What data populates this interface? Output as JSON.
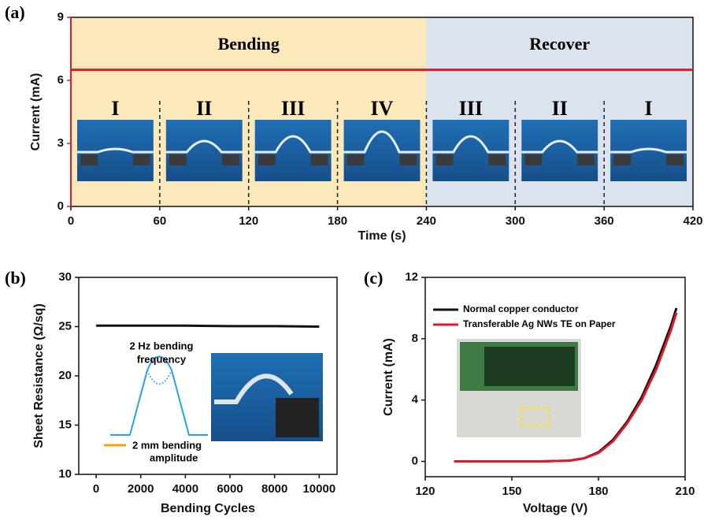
{
  "chart_data": [
    {
      "type": "line",
      "panel_label": "(a)",
      "xlabel": "Time (s)",
      "ylabel": "Current (mA)",
      "ylabel_color": "#e0192a",
      "x": [
        0,
        420
      ],
      "series": [
        {
          "color": "#e0192a",
          "values": [
            6.5,
            6.5
          ]
        }
      ],
      "xlim": [
        0,
        420
      ],
      "ylim": [
        0,
        9
      ],
      "xticks": [
        0,
        60,
        120,
        180,
        240,
        300,
        360,
        420
      ],
      "yticks": [
        0,
        3,
        6,
        9
      ],
      "regions": [
        {
          "label": "Bending",
          "from": 0,
          "to": 240,
          "color": "#fbe8bb"
        },
        {
          "label": "Recover",
          "from": 240,
          "to": 420,
          "color": "#dbe3ee"
        }
      ],
      "stages": [
        "I",
        "II",
        "III",
        "IV",
        "III",
        "II",
        "I"
      ],
      "dividers": [
        60,
        120,
        180,
        240,
        300,
        360
      ]
    },
    {
      "type": "line",
      "panel_label": "(b)",
      "xlabel": "Bending Cycles",
      "ylabel": "Sheet Resistance (Ω/sq)",
      "x": [
        0,
        2000,
        4000,
        6000,
        8000,
        10000
      ],
      "series": [
        {
          "color": "#111111",
          "values": [
            25.1,
            25.1,
            25.1,
            25.05,
            25.05,
            25.0
          ]
        }
      ],
      "xlim": [
        -780,
        10800
      ],
      "ylim": [
        10,
        30
      ],
      "xticks": [
        0,
        2000,
        4000,
        6000,
        8000,
        10000
      ],
      "yticks": [
        10,
        15,
        20,
        25,
        30
      ],
      "annotations": [
        "2 Hz bending",
        "frequency",
        "2 mm bending",
        "amplitude"
      ]
    },
    {
      "type": "line",
      "panel_label": "(c)",
      "xlabel": "Voltage (V)",
      "ylabel": "Current (mA)",
      "x": [
        130,
        140,
        150,
        160,
        170,
        175,
        180,
        185,
        190,
        195,
        200,
        205,
        207
      ],
      "series": [
        {
          "name": "Normal copper conductor",
          "color": "#111111",
          "values": [
            0,
            0,
            0,
            0,
            0.05,
            0.2,
            0.6,
            1.4,
            2.6,
            4.2,
            6.3,
            8.8,
            10.0
          ]
        },
        {
          "name": "Transferable Ag NWs TE on Paper",
          "color": "#e0192a",
          "values": [
            0,
            0,
            0,
            0,
            0.05,
            0.2,
            0.55,
            1.3,
            2.5,
            4.0,
            6.0,
            8.5,
            9.7
          ]
        }
      ],
      "xlim": [
        120,
        210
      ],
      "ylim": [
        -1,
        12
      ],
      "xticks": [
        120,
        150,
        180,
        210
      ],
      "yticks": [
        0,
        4,
        8,
        12
      ],
      "legend": "upper left"
    }
  ]
}
